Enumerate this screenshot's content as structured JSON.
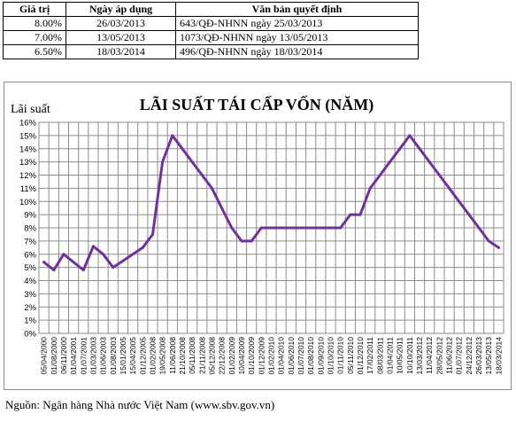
{
  "table": {
    "headers": [
      "Giá trị",
      "Ngày áp dụng",
      "Văn bản quyết định"
    ],
    "rows": [
      [
        "8.00%",
        "26/03/2013",
        "643/QĐ-NHNN ngày 25/03/2013"
      ],
      [
        "7.00%",
        "13/05/2013",
        "1073/QĐ-NHNN ngày 13/05/2013"
      ],
      [
        "6.50%",
        "18/03/2014",
        "496/QĐ-NHNN ngày 18/03/2014"
      ]
    ]
  },
  "chart_data": {
    "type": "line",
    "title": "LÃI SUẤT TÁI CẤP VỐN (NĂM)",
    "ylabel": "Lãi suất",
    "xlabel": "",
    "ylim": [
      0,
      16
    ],
    "y_ticks": [
      "0%",
      "1%",
      "2%",
      "3%",
      "4%",
      "5%",
      "6%",
      "7%",
      "8%",
      "9%",
      "10%",
      "11%",
      "12%",
      "13%",
      "14%",
      "15%",
      "16%"
    ],
    "grid": true,
    "legend": "none",
    "color": "#7030a0",
    "categories": [
      "05/04/2000",
      "01/08/2000",
      "06/11/2000",
      "01/04/2001",
      "01/07/2001",
      "01/03/2003",
      "01/06/2003",
      "01/08/2003",
      "15/01/2005",
      "15/04/2005",
      "01/12/2005",
      "01/02/2008",
      "19/05/2008",
      "11/06/2008",
      "21/10/2008",
      "05/11/2008",
      "21/11/2008",
      "05/12/2008",
      "22/12/2008",
      "01/02/2009",
      "10/04/2009",
      "01/10/2009",
      "01/12/2009",
      "01/02/2010",
      "01/04/2010",
      "01/06/2010",
      "01/07/2010",
      "01/08/2010",
      "01/09/2010",
      "01/10/2010",
      "01/11/2010",
      "05/11/2010",
      "01/12/2010",
      "17/02/2011",
      "08/03/2011",
      "01/04/2011",
      "10/05/2011",
      "10/10/2011",
      "13/03/2012",
      "11/04/2012",
      "28/05/2012",
      "11/06/2012",
      "01/07/2012",
      "24/12/2012",
      "26/03/2013",
      "13/05/2013",
      "18/03/2014"
    ],
    "series": [
      {
        "values": [
          5.4,
          4.8,
          6.0,
          5.4,
          4.8,
          6.6,
          6.0,
          5.0,
          5.5,
          6.0,
          6.5,
          7.5,
          13.0,
          15.0,
          14.0,
          13.0,
          12.0,
          11.0,
          9.5,
          8.0,
          7.0,
          7.0,
          8.0,
          8.0,
          8.0,
          8.0,
          8.0,
          8.0,
          8.0,
          8.0,
          8.0,
          9.0,
          9.0,
          11.0,
          12.0,
          13.0,
          14.0,
          15.0,
          14.0,
          13.0,
          12.0,
          11.0,
          10.0,
          9.0,
          8.0,
          7.0,
          6.5
        ]
      }
    ]
  },
  "source": "Nguồn: Ngân hàng Nhà nước Việt Nam (www.sbv.gov.vn)"
}
